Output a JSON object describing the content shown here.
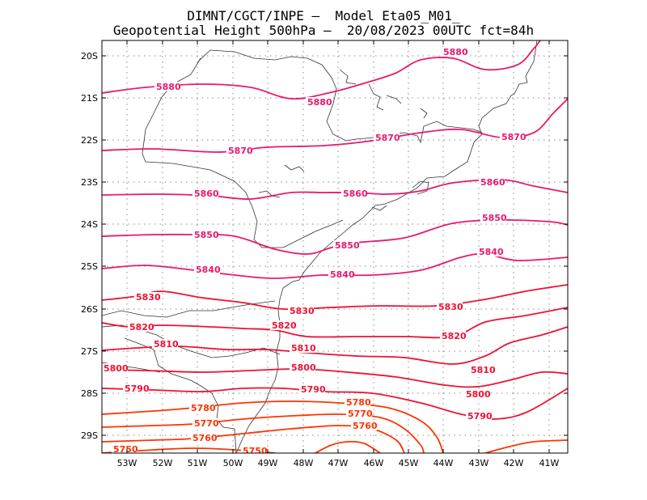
{
  "header": {
    "line1": "DIMNT/CGCT/INPE –  Model Eta05_M01_",
    "line2": "Geopotential Height 500hPa –  20/08/2023 00UTC fct=84h"
  },
  "colors": {
    "high": "#e8196e",
    "mid": "#ee1133",
    "low": "#ff3300",
    "coast": "#333333",
    "grid": "#888888"
  },
  "axes": {
    "lat_labels": [
      "20S",
      "21S",
      "22S",
      "23S",
      "24S",
      "25S",
      "26S",
      "27S",
      "28S",
      "29S"
    ],
    "lon_labels": [
      "53W",
      "52W",
      "51W",
      "50W",
      "49W",
      "48W",
      "47W",
      "46W",
      "45W",
      "44W",
      "43W",
      "42W",
      "41W"
    ]
  },
  "contours": [
    {
      "value": 5880,
      "labels": [
        "5880",
        "5880",
        "5880"
      ]
    },
    {
      "value": 5870,
      "labels": [
        "5870",
        "5870",
        "5870"
      ]
    },
    {
      "value": 5860,
      "labels": [
        "5860",
        "5860",
        "5860"
      ]
    },
    {
      "value": 5850,
      "labels": [
        "5850",
        "5850",
        "5850"
      ]
    },
    {
      "value": 5840,
      "labels": [
        "5840",
        "5840",
        "5840"
      ]
    },
    {
      "value": 5830,
      "labels": [
        "5830",
        "5830",
        "5830"
      ]
    },
    {
      "value": 5820,
      "labels": [
        "5820",
        "5820",
        "5820"
      ]
    },
    {
      "value": 5810,
      "labels": [
        "5810",
        "5810",
        "5810"
      ]
    },
    {
      "value": 5800,
      "labels": [
        "5800",
        "5800",
        "5800"
      ]
    },
    {
      "value": 5790,
      "labels": [
        "5790",
        "5790",
        "5790"
      ]
    },
    {
      "value": 5780,
      "labels": [
        "5780",
        "5780"
      ]
    },
    {
      "value": 5770,
      "labels": [
        "5770",
        "5770"
      ]
    },
    {
      "value": 5760,
      "labels": [
        "5760",
        "5760"
      ]
    },
    {
      "value": 5750,
      "labels": [
        "5750",
        "5750"
      ]
    }
  ]
}
